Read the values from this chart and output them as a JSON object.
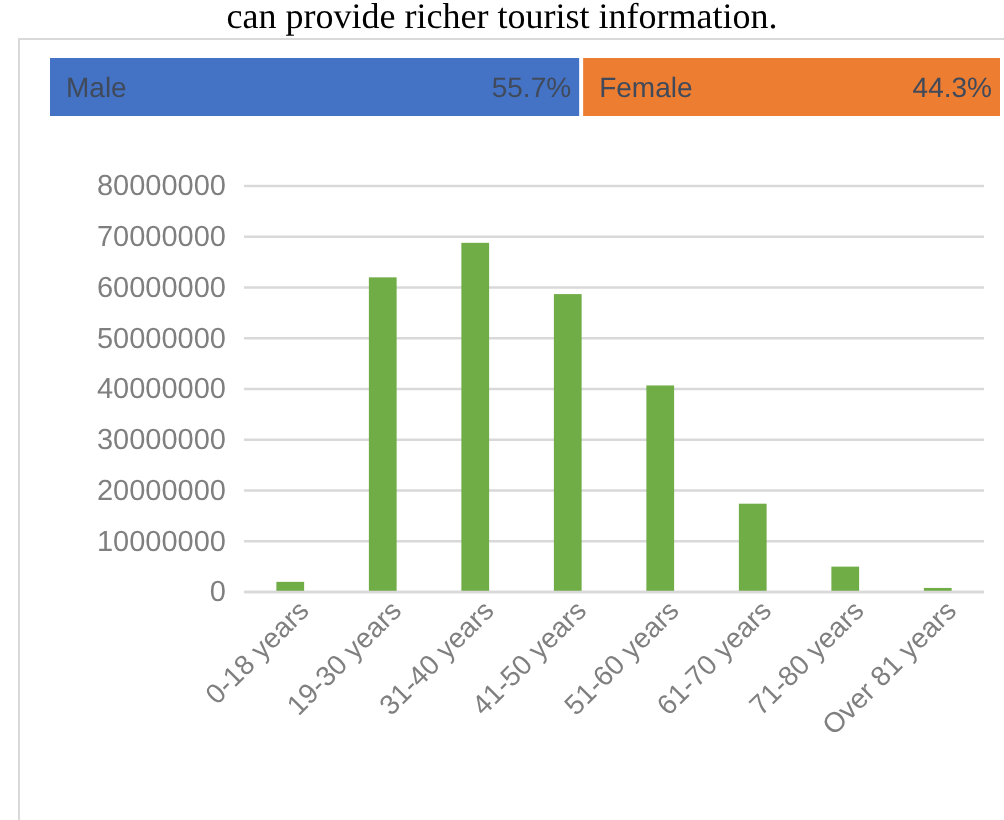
{
  "chart_data": [
    {
      "type": "bar",
      "orientation": "horizontal",
      "stacked": true,
      "categories": [
        null
      ],
      "annotations": [
        "can provide richer tourist information."
      ],
      "series": [
        {
          "name": "Male",
          "color": "#4472c4",
          "values": [
            55.7
          ],
          "value_labels": [
            "55.7%"
          ]
        },
        {
          "name": "Female",
          "color": "#ed7d31",
          "values": [
            44.3
          ],
          "value_labels": [
            "44.3%"
          ]
        }
      ]
    },
    {
      "type": "bar",
      "categories": [
        "0-18 years",
        "19-30 years",
        "31-40 years",
        "41-50 years",
        "51-60 years",
        "61-70 years",
        "71-80 years",
        "Over 81 years"
      ],
      "values": [
        2000000,
        62000000,
        68800000,
        58700000,
        40700000,
        17400000,
        5000000,
        800000
      ],
      "color": "#70ad47",
      "ylim": [
        0,
        80000000
      ],
      "yticks": [
        0,
        10000000,
        20000000,
        30000000,
        40000000,
        50000000,
        60000000,
        70000000,
        80000000
      ],
      "grid": "y"
    }
  ]
}
